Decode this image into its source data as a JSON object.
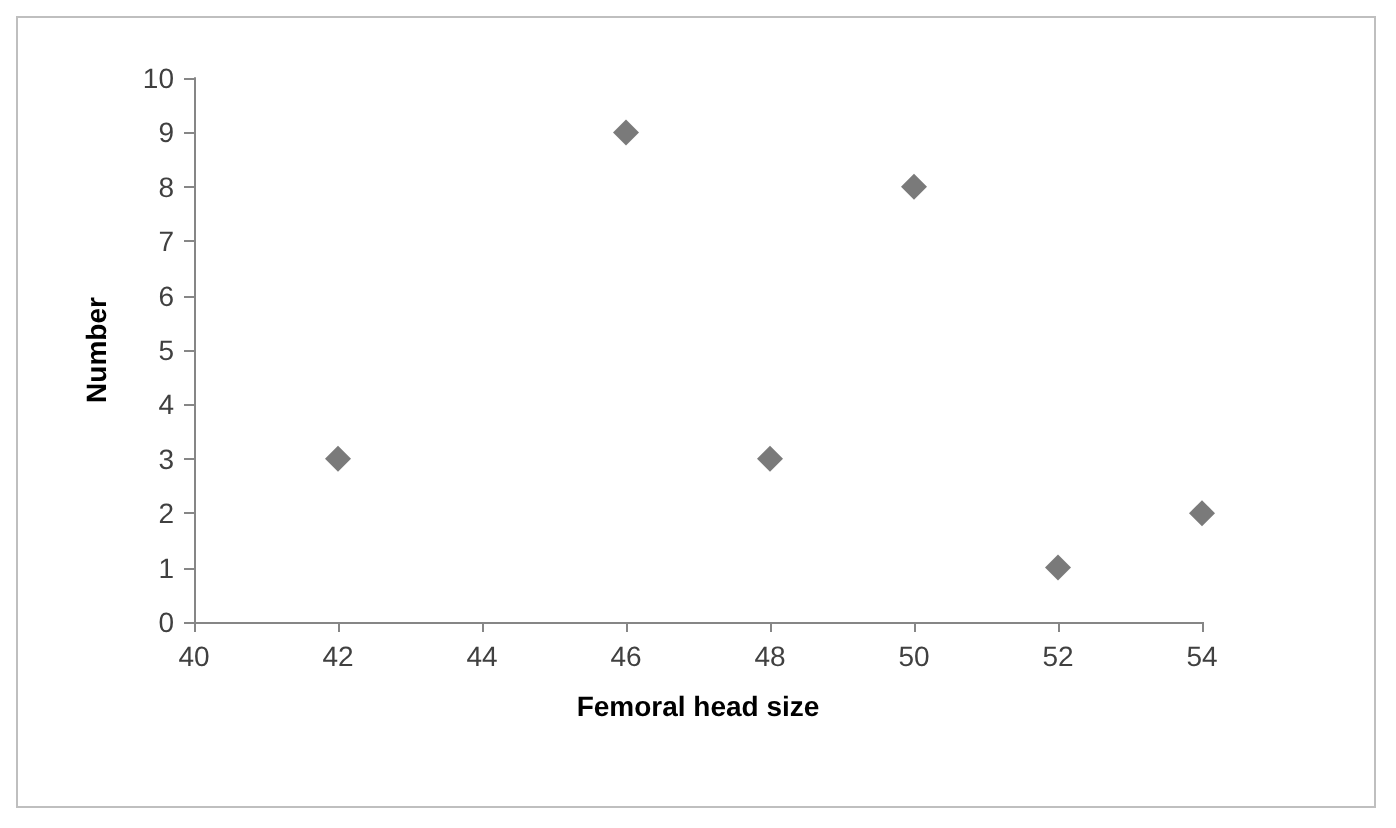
{
  "chart_data": {
    "type": "scatter",
    "xlabel": "Femoral head size",
    "ylabel": "Number",
    "x": [
      42,
      46,
      48,
      50,
      52,
      54
    ],
    "values": [
      3,
      9,
      3,
      8,
      1,
      2
    ],
    "color": "#595959",
    "marker": "diamond",
    "xlim": [
      40,
      54
    ],
    "xticks": [
      40,
      42,
      44,
      46,
      48,
      50,
      52,
      54
    ],
    "ylim": [
      0,
      10
    ],
    "yticks": [
      0,
      1,
      2,
      3,
      4,
      5,
      6,
      7,
      8,
      9,
      10
    ],
    "grid": false
  }
}
